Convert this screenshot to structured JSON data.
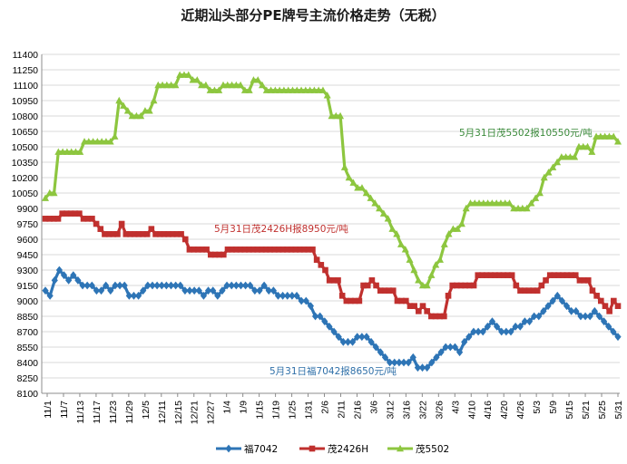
{
  "chart_data": {
    "type": "line",
    "title": "近期汕头部分PE牌号主流价格走势（无税）",
    "xlabel": "",
    "ylabel": "",
    "ylim": [
      8100,
      11400
    ],
    "ystep": 150,
    "grid": "horizontal",
    "legend_position": "bottom",
    "x_tick_labels": [
      "11/1",
      "11/7",
      "11/13",
      "11/17",
      "11/23",
      "11/29",
      "12/5",
      "12/11",
      "12/15",
      "12/21",
      "12/27",
      "1/4",
      "1/9",
      "1/15",
      "1/19",
      "1/25",
      "1/31",
      "2/6",
      "2/11",
      "2/16",
      "3/6",
      "3/12",
      "3/16",
      "3/22",
      "3/26",
      "4/3",
      "4/10",
      "4/16",
      "4/20",
      "4/26",
      "5/3",
      "5/9",
      "5/15",
      "5/21",
      "5/25",
      "5/31"
    ],
    "colors": {
      "fu7042": "#2e75b6",
      "mao2426h": "#c0302e",
      "mao5502": "#8dc63f"
    },
    "series": [
      {
        "name": "福7042",
        "color": "#2e75b6",
        "values": [
          9100,
          9050,
          9200,
          9300,
          9250,
          9200,
          9250,
          9200,
          9150,
          9150,
          9150,
          9100,
          9100,
          9150,
          9100,
          9150,
          9150,
          9150,
          9050,
          9050,
          9050,
          9100,
          9150,
          9150,
          9150,
          9150,
          9150,
          9150,
          9150,
          9150,
          9100,
          9100,
          9100,
          9100,
          9050,
          9100,
          9100,
          9050,
          9100,
          9150,
          9150,
          9150,
          9150,
          9150,
          9150,
          9100,
          9100,
          9150,
          9100,
          9100,
          9050,
          9050,
          9050,
          9050,
          9050,
          9000,
          9000,
          8950,
          8850,
          8850,
          8800,
          8750,
          8700,
          8650,
          8600,
          8600,
          8600,
          8650,
          8650,
          8650,
          8600,
          8550,
          8500,
          8450,
          8400,
          8400,
          8400,
          8400,
          8400,
          8450,
          8350,
          8350,
          8350,
          8400,
          8450,
          8500,
          8550,
          8550,
          8550,
          8500,
          8600,
          8650,
          8700,
          8700,
          8700,
          8750,
          8800,
          8750,
          8700,
          8700,
          8700,
          8750,
          8750,
          8800,
          8800,
          8850,
          8850,
          8900,
          8950,
          9000,
          9050,
          9000,
          8950,
          8900,
          8900,
          8850,
          8850,
          8850,
          8900,
          8850,
          8800,
          8750,
          8700,
          8650
        ]
      },
      {
        "name": "茂2426H",
        "color": "#c0302e",
        "values": [
          9800,
          9800,
          9800,
          9800,
          9850,
          9850,
          9850,
          9850,
          9850,
          9800,
          9800,
          9800,
          9750,
          9700,
          9650,
          9650,
          9650,
          9650,
          9750,
          9650,
          9650,
          9650,
          9650,
          9650,
          9650,
          9700,
          9650,
          9650,
          9650,
          9650,
          9650,
          9650,
          9650,
          9600,
          9500,
          9500,
          9500,
          9500,
          9500,
          9450,
          9450,
          9450,
          9450,
          9500,
          9500,
          9500,
          9500,
          9500,
          9500,
          9500,
          9500,
          9500,
          9500,
          9500,
          9500,
          9500,
          9500,
          9500,
          9500,
          9500,
          9500,
          9500,
          9500,
          9500,
          9400,
          9350,
          9300,
          9200,
          9200,
          9200,
          9050,
          9000,
          9000,
          9000,
          9000,
          9150,
          9150,
          9200,
          9150,
          9100,
          9100,
          9100,
          9100,
          9000,
          9000,
          9000,
          8950,
          8950,
          8900,
          8950,
          8900,
          8850,
          8850,
          8850,
          8850,
          9050,
          9150,
          9150,
          9150,
          9150,
          9150,
          9150,
          9250,
          9250,
          9250,
          9250,
          9250,
          9250,
          9250,
          9250,
          9250,
          9150,
          9100,
          9100,
          9100,
          9100,
          9100,
          9150,
          9200,
          9250,
          9250,
          9250,
          9250,
          9250,
          9250,
          9250,
          9200,
          9200,
          9200,
          9100,
          9050,
          9000,
          8950,
          8900,
          9000,
          8950
        ]
      },
      {
        "name": "茂5502",
        "color": "#8dc63f",
        "values": [
          10000,
          10050,
          10050,
          10450,
          10450,
          10450,
          10450,
          10450,
          10450,
          10550,
          10550,
          10550,
          10550,
          10550,
          10550,
          10550,
          10600,
          10950,
          10900,
          10850,
          10800,
          10800,
          10800,
          10850,
          10850,
          10950,
          11100,
          11100,
          11100,
          11100,
          11100,
          11200,
          11200,
          11200,
          11150,
          11150,
          11100,
          11100,
          11050,
          11050,
          11050,
          11100,
          11100,
          11100,
          11100,
          11100,
          11050,
          11050,
          11150,
          11150,
          11100,
          11050,
          11050,
          11050,
          11050,
          11050,
          11050,
          11050,
          11050,
          11050,
          11050,
          11050,
          11050,
          11050,
          11050,
          11000,
          10800,
          10800,
          10800,
          10300,
          10200,
          10150,
          10100,
          10100,
          10050,
          10000,
          9950,
          9900,
          9850,
          9800,
          9700,
          9650,
          9550,
          9500,
          9400,
          9300,
          9200,
          9150,
          9150,
          9250,
          9350,
          9400,
          9550,
          9650,
          9700,
          9700,
          9750,
          9900,
          9950,
          9950,
          9950,
          9950,
          9950,
          9950,
          9950,
          9950,
          9950,
          9950,
          9900,
          9900,
          9900,
          9900,
          9950,
          10000,
          10050,
          10200,
          10250,
          10300,
          10350,
          10400,
          10400,
          10400,
          10400,
          10500,
          10500,
          10500,
          10450,
          10600,
          10600,
          10600,
          10600,
          10600,
          10550
        ]
      }
    ],
    "annotations": [
      {
        "text": "5月31日茂5502报10550元/吨",
        "series": "茂5502"
      },
      {
        "text": "5月31日茂2426H报8950元/吨",
        "series": "茂2426H"
      },
      {
        "text": "5月31日福7042报8650元/吨",
        "series": "福7042"
      }
    ]
  }
}
